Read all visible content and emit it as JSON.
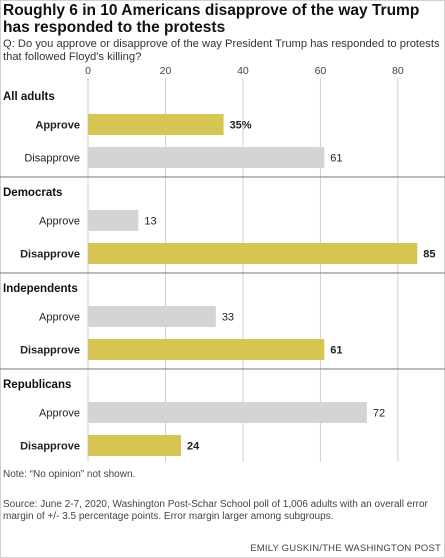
{
  "title": "Roughly 6 in 10 Americans disapprove of the way Trump has responded to the protests",
  "question": "Q: Do you approve or disapprove of the way President Trump has responded to protests that followed Floyd's killing?",
  "note": "Note: “No opinion” not shown.",
  "source": "Source: June 2-7, 2020, Washington Post-Schar School poll of 1,006 adults with an overall error margin of +/- 3.5 percentage points. Error margin larger among subgroups.",
  "credit": "EMILY GUSKIN/THE WASHINGTON POST",
  "colors": {
    "highlight": "#d7c553",
    "other": "#d4d4d4",
    "grid": "#cfcfcf"
  },
  "chart_data": {
    "type": "bar",
    "orientation": "horizontal",
    "xlim": [
      0,
      87
    ],
    "ticks": [
      0,
      20,
      40,
      60,
      80
    ],
    "grid": true,
    "groups": [
      {
        "name": "All adults",
        "bars": [
          {
            "label": "Approve",
            "value": 35,
            "display": "35%",
            "highlight": true
          },
          {
            "label": "Disapprove",
            "value": 61,
            "display": "61",
            "highlight": false
          }
        ]
      },
      {
        "name": "Democrats",
        "bars": [
          {
            "label": "Approve",
            "value": 13,
            "display": "13",
            "highlight": false
          },
          {
            "label": "Disapprove",
            "value": 85,
            "display": "85",
            "highlight": true
          }
        ]
      },
      {
        "name": "Independents",
        "bars": [
          {
            "label": "Approve",
            "value": 33,
            "display": "33",
            "highlight": false
          },
          {
            "label": "Disapprove",
            "value": 61,
            "display": "61",
            "highlight": true
          }
        ]
      },
      {
        "name": "Republicans",
        "bars": [
          {
            "label": "Approve",
            "value": 72,
            "display": "72",
            "highlight": false
          },
          {
            "label": "Disapprove",
            "value": 24,
            "display": "24",
            "highlight": true
          }
        ]
      }
    ]
  }
}
